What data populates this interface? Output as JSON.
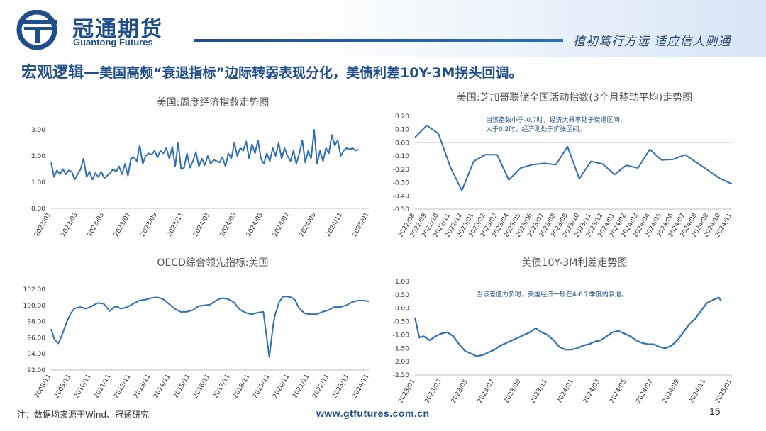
{
  "header": {
    "brand_cn": "冠通期货",
    "brand_en": "Guantong Futures",
    "slogan": "植初笃行方远 适应信人则通"
  },
  "headline": {
    "prefix": "宏观逻辑—",
    "text": "美国高频“衰退指标”边际转弱表现分化，美债利差10Y-3M拐头回调。"
  },
  "footer": {
    "note": "注：数据均来源于Wind、冠通研究",
    "website": "www.gtfutures.com.cn",
    "page": "15"
  },
  "colors": {
    "brand": "#1f4e8c",
    "line": "#2e6fb8"
  },
  "chart_data": [
    {
      "id": "weekly",
      "type": "line",
      "title": "美国:周度经济指数走势图",
      "ylim": [
        0,
        3
      ],
      "yticks": [
        "0.00",
        "1.00",
        "2.00",
        "3.00"
      ],
      "xticks": [
        "2023/01",
        "2023/03",
        "2023/05",
        "2023/07",
        "2023/09",
        "2023/11",
        "2024/01",
        "2024/03",
        "2024/05",
        "2024/07",
        "2024/09",
        "2024/11",
        "2025/01"
      ],
      "x_range": [
        2023.0,
        2025.15
      ],
      "series": [
        {
          "x": [
            2023.0,
            2023.02,
            2023.04,
            2023.06,
            2023.08,
            2023.1,
            2023.12,
            2023.14,
            2023.16,
            2023.18,
            2023.2,
            2023.22,
            2023.24,
            2023.26,
            2023.28,
            2023.3,
            2023.32,
            2023.34,
            2023.36,
            2023.38,
            2023.4,
            2023.42,
            2023.44,
            2023.46,
            2023.48,
            2023.5,
            2023.52,
            2023.54,
            2023.56,
            2023.58,
            2023.6,
            2023.62,
            2023.64,
            2023.66,
            2023.68,
            2023.7,
            2023.72,
            2023.74,
            2023.76,
            2023.78,
            2023.8,
            2023.82,
            2023.84,
            2023.86,
            2023.88,
            2023.9,
            2023.92,
            2023.94,
            2023.96,
            2023.98,
            2024.0,
            2024.02,
            2024.04,
            2024.06,
            2024.08,
            2024.1,
            2024.12,
            2024.14,
            2024.16,
            2024.18,
            2024.2,
            2024.22,
            2024.24,
            2024.26,
            2024.28,
            2024.3,
            2024.32,
            2024.34,
            2024.36,
            2024.38,
            2024.4,
            2024.42,
            2024.44,
            2024.46,
            2024.48,
            2024.5,
            2024.52,
            2024.54,
            2024.56,
            2024.58,
            2024.6,
            2024.62,
            2024.64,
            2024.66,
            2024.68,
            2024.7,
            2024.72,
            2024.74,
            2024.76,
            2024.78,
            2024.8,
            2024.82,
            2024.84,
            2024.86,
            2024.88,
            2024.9,
            2024.92,
            2024.94,
            2024.96,
            2024.98,
            2025.0,
            2025.02,
            2025.04,
            2025.06,
            2025.08
          ],
          "y": [
            1.75,
            1.2,
            1.45,
            1.3,
            1.5,
            1.3,
            1.45,
            1.4,
            1.1,
            1.3,
            1.5,
            1.9,
            1.2,
            1.4,
            1.1,
            1.35,
            1.2,
            1.4,
            1.15,
            1.25,
            1.35,
            1.5,
            1.4,
            1.6,
            1.3,
            1.7,
            1.25,
            1.9,
            1.95,
            1.8,
            2.4,
            1.7,
            2.0,
            2.1,
            2.05,
            2.2,
            1.95,
            2.2,
            2.1,
            2.3,
            1.9,
            2.35,
            1.6,
            2.5,
            1.5,
            1.55,
            2.1,
            1.55,
            1.8,
            2.15,
            1.6,
            1.9,
            1.65,
            2.0,
            1.7,
            1.85,
            1.8,
            1.75,
            1.95,
            1.6,
            2.1,
            1.9,
            2.5,
            2.0,
            2.3,
            2.2,
            2.55,
            1.9,
            2.45,
            2.1,
            2.6,
            1.9,
            1.7,
            2.1,
            1.8,
            2.3,
            2.0,
            2.5,
            1.9,
            2.3,
            2.0,
            1.8,
            2.2,
            1.7,
            2.1,
            2.6,
            1.75,
            2.2,
            1.9,
            3.0,
            1.7,
            2.2,
            1.8,
            2.3,
            2.1,
            2.8,
            2.4,
            2.6,
            2.0,
            2.2,
            2.3,
            2.25,
            2.3,
            2.2,
            2.25
          ]
        }
      ]
    },
    {
      "id": "chicago",
      "type": "line",
      "title": "美国:芝加哥联储全国活动指数(3个月移动平均)走势图",
      "ylim": [
        -0.5,
        0.2
      ],
      "yticks": [
        "0.20",
        "0.10",
        "0.00",
        "-0.10",
        "-0.20",
        "-0.30",
        "-0.40",
        "-0.50"
      ],
      "xticks": [
        "2022/08",
        "2022/09",
        "2022/10",
        "2022/11",
        "2022/12",
        "2023/01",
        "2023/02",
        "2023/03",
        "2023/04",
        "2023/05",
        "2023/06",
        "2023/07",
        "2023/08",
        "2023/09",
        "2023/10",
        "2023/11",
        "2023/12",
        "2024/01",
        "2024/02",
        "2024/03",
        "2024/04",
        "2024/05",
        "2024/06",
        "2024/07",
        "2024/08",
        "2024/09",
        "2024/10",
        "2024/11"
      ],
      "annotation": [
        "当该指数小于-0.7时，经济大概率处于衰退区间；",
        "大于0.2时，经济则处于扩张区间。"
      ],
      "series": [
        {
          "y": [
            0.04,
            0.13,
            0.07,
            -0.18,
            -0.36,
            -0.14,
            -0.09,
            -0.09,
            -0.28,
            -0.19,
            -0.165,
            -0.155,
            -0.165,
            -0.03,
            -0.27,
            -0.14,
            -0.16,
            -0.24,
            -0.17,
            -0.19,
            -0.05,
            -0.13,
            -0.125,
            -0.09,
            -0.15,
            -0.21,
            -0.27,
            -0.31
          ]
        }
      ]
    },
    {
      "id": "oecd",
      "type": "line",
      "title": "OECD综合领先指标:美国",
      "ylim": [
        92,
        102
      ],
      "yticks": [
        "92.00",
        "94.00",
        "96.00",
        "98.00",
        "100.00",
        "102.00"
      ],
      "xticks": [
        "2008/11",
        "2009/11",
        "2010/11",
        "2011/11",
        "2012/11",
        "2013/11",
        "2014/11",
        "2015/11",
        "2016/11",
        "2017/11",
        "2018/11",
        "2019/11",
        "2020/11",
        "2021/11",
        "2022/11",
        "2023/11",
        "2024/11"
      ],
      "x_range": [
        2008.83,
        2024.95
      ],
      "series": [
        {
          "x": [
            2008.83,
            2009.0,
            2009.2,
            2009.4,
            2009.6,
            2009.8,
            2010.0,
            2010.3,
            2010.6,
            2010.9,
            2011.2,
            2011.5,
            2011.8,
            2012.1,
            2012.4,
            2012.7,
            2013.0,
            2013.3,
            2013.6,
            2013.9,
            2014.2,
            2014.5,
            2014.8,
            2015.1,
            2015.4,
            2015.7,
            2016.0,
            2016.3,
            2016.6,
            2016.9,
            2017.2,
            2017.5,
            2017.8,
            2018.1,
            2018.4,
            2018.7,
            2019.0,
            2019.3,
            2019.6,
            2019.9,
            2020.1,
            2020.2,
            2020.3,
            2020.4,
            2020.6,
            2020.8,
            2021.0,
            2021.2,
            2021.4,
            2021.7,
            2022.0,
            2022.3,
            2022.6,
            2022.9,
            2023.2,
            2023.5,
            2023.8,
            2024.1,
            2024.4,
            2024.7,
            2024.95
          ],
          "y": [
            97.1,
            95.8,
            95.3,
            96.4,
            97.8,
            98.9,
            99.6,
            99.8,
            99.6,
            99.9,
            100.3,
            100.2,
            99.3,
            99.9,
            99.6,
            99.8,
            100.2,
            100.6,
            100.7,
            100.9,
            101.0,
            100.8,
            100.2,
            99.6,
            99.2,
            99.2,
            99.4,
            99.9,
            100.0,
            100.1,
            100.6,
            100.9,
            100.8,
            100.4,
            99.5,
            99.1,
            98.9,
            99.1,
            99.2,
            93.6,
            97.6,
            98.9,
            99.6,
            100.4,
            101.1,
            101.1,
            101.0,
            100.7,
            99.7,
            99.0,
            98.9,
            98.9,
            99.2,
            99.4,
            99.8,
            99.8,
            100.0,
            100.4,
            100.6,
            100.6,
            100.5
          ]
        }
      ]
    },
    {
      "id": "spread",
      "type": "line",
      "title": "美债10Y-3M利差走势图",
      "ylim": [
        -2.5,
        1.0
      ],
      "yticks": [
        "1.00",
        "0.50",
        "0.00",
        "-0.50",
        "-1.00",
        "-1.50",
        "-2.00",
        "-2.50"
      ],
      "xticks": [
        "2023/01",
        "2023/03",
        "2023/05",
        "2023/07",
        "2023/09",
        "2023/11",
        "2024/01",
        "2024/03",
        "2024/05",
        "2024/07",
        "2024/09",
        "2024/11",
        "2025/01"
      ],
      "x_range": [
        2023.0,
        2025.15
      ],
      "annotation": [
        "当该差值为负时，美国经济一般在4-6个季度内衰退。"
      ],
      "series": [
        {
          "x": [
            2023.0,
            2023.03,
            2023.06,
            2023.1,
            2023.14,
            2023.18,
            2023.22,
            2023.26,
            2023.3,
            2023.34,
            2023.38,
            2023.42,
            2023.46,
            2023.5,
            2023.54,
            2023.58,
            2023.62,
            2023.66,
            2023.7,
            2023.74,
            2023.78,
            2023.82,
            2023.86,
            2023.9,
            2023.94,
            2023.98,
            2024.02,
            2024.06,
            2024.1,
            2024.14,
            2024.18,
            2024.22,
            2024.26,
            2024.3,
            2024.34,
            2024.38,
            2024.42,
            2024.46,
            2024.5,
            2024.54,
            2024.58,
            2024.62,
            2024.66,
            2024.7,
            2024.74,
            2024.78,
            2024.82,
            2024.86,
            2024.9,
            2024.94,
            2024.98,
            2025.02,
            2025.06,
            2025.08
          ],
          "y": [
            -0.35,
            -1.1,
            -1.05,
            -1.2,
            -1.05,
            -0.95,
            -0.9,
            -1.05,
            -1.35,
            -1.6,
            -1.7,
            -1.8,
            -1.75,
            -1.65,
            -1.55,
            -1.4,
            -1.3,
            -1.2,
            -1.1,
            -1.0,
            -0.9,
            -0.75,
            -0.9,
            -1.0,
            -1.2,
            -1.45,
            -1.55,
            -1.55,
            -1.5,
            -1.4,
            -1.35,
            -1.25,
            -1.2,
            -1.05,
            -0.9,
            -0.85,
            -0.95,
            -1.05,
            -1.2,
            -1.3,
            -1.35,
            -1.35,
            -1.45,
            -1.5,
            -1.4,
            -1.2,
            -0.9,
            -0.6,
            -0.4,
            -0.1,
            0.2,
            0.3,
            0.4,
            0.25
          ]
        }
      ]
    }
  ]
}
